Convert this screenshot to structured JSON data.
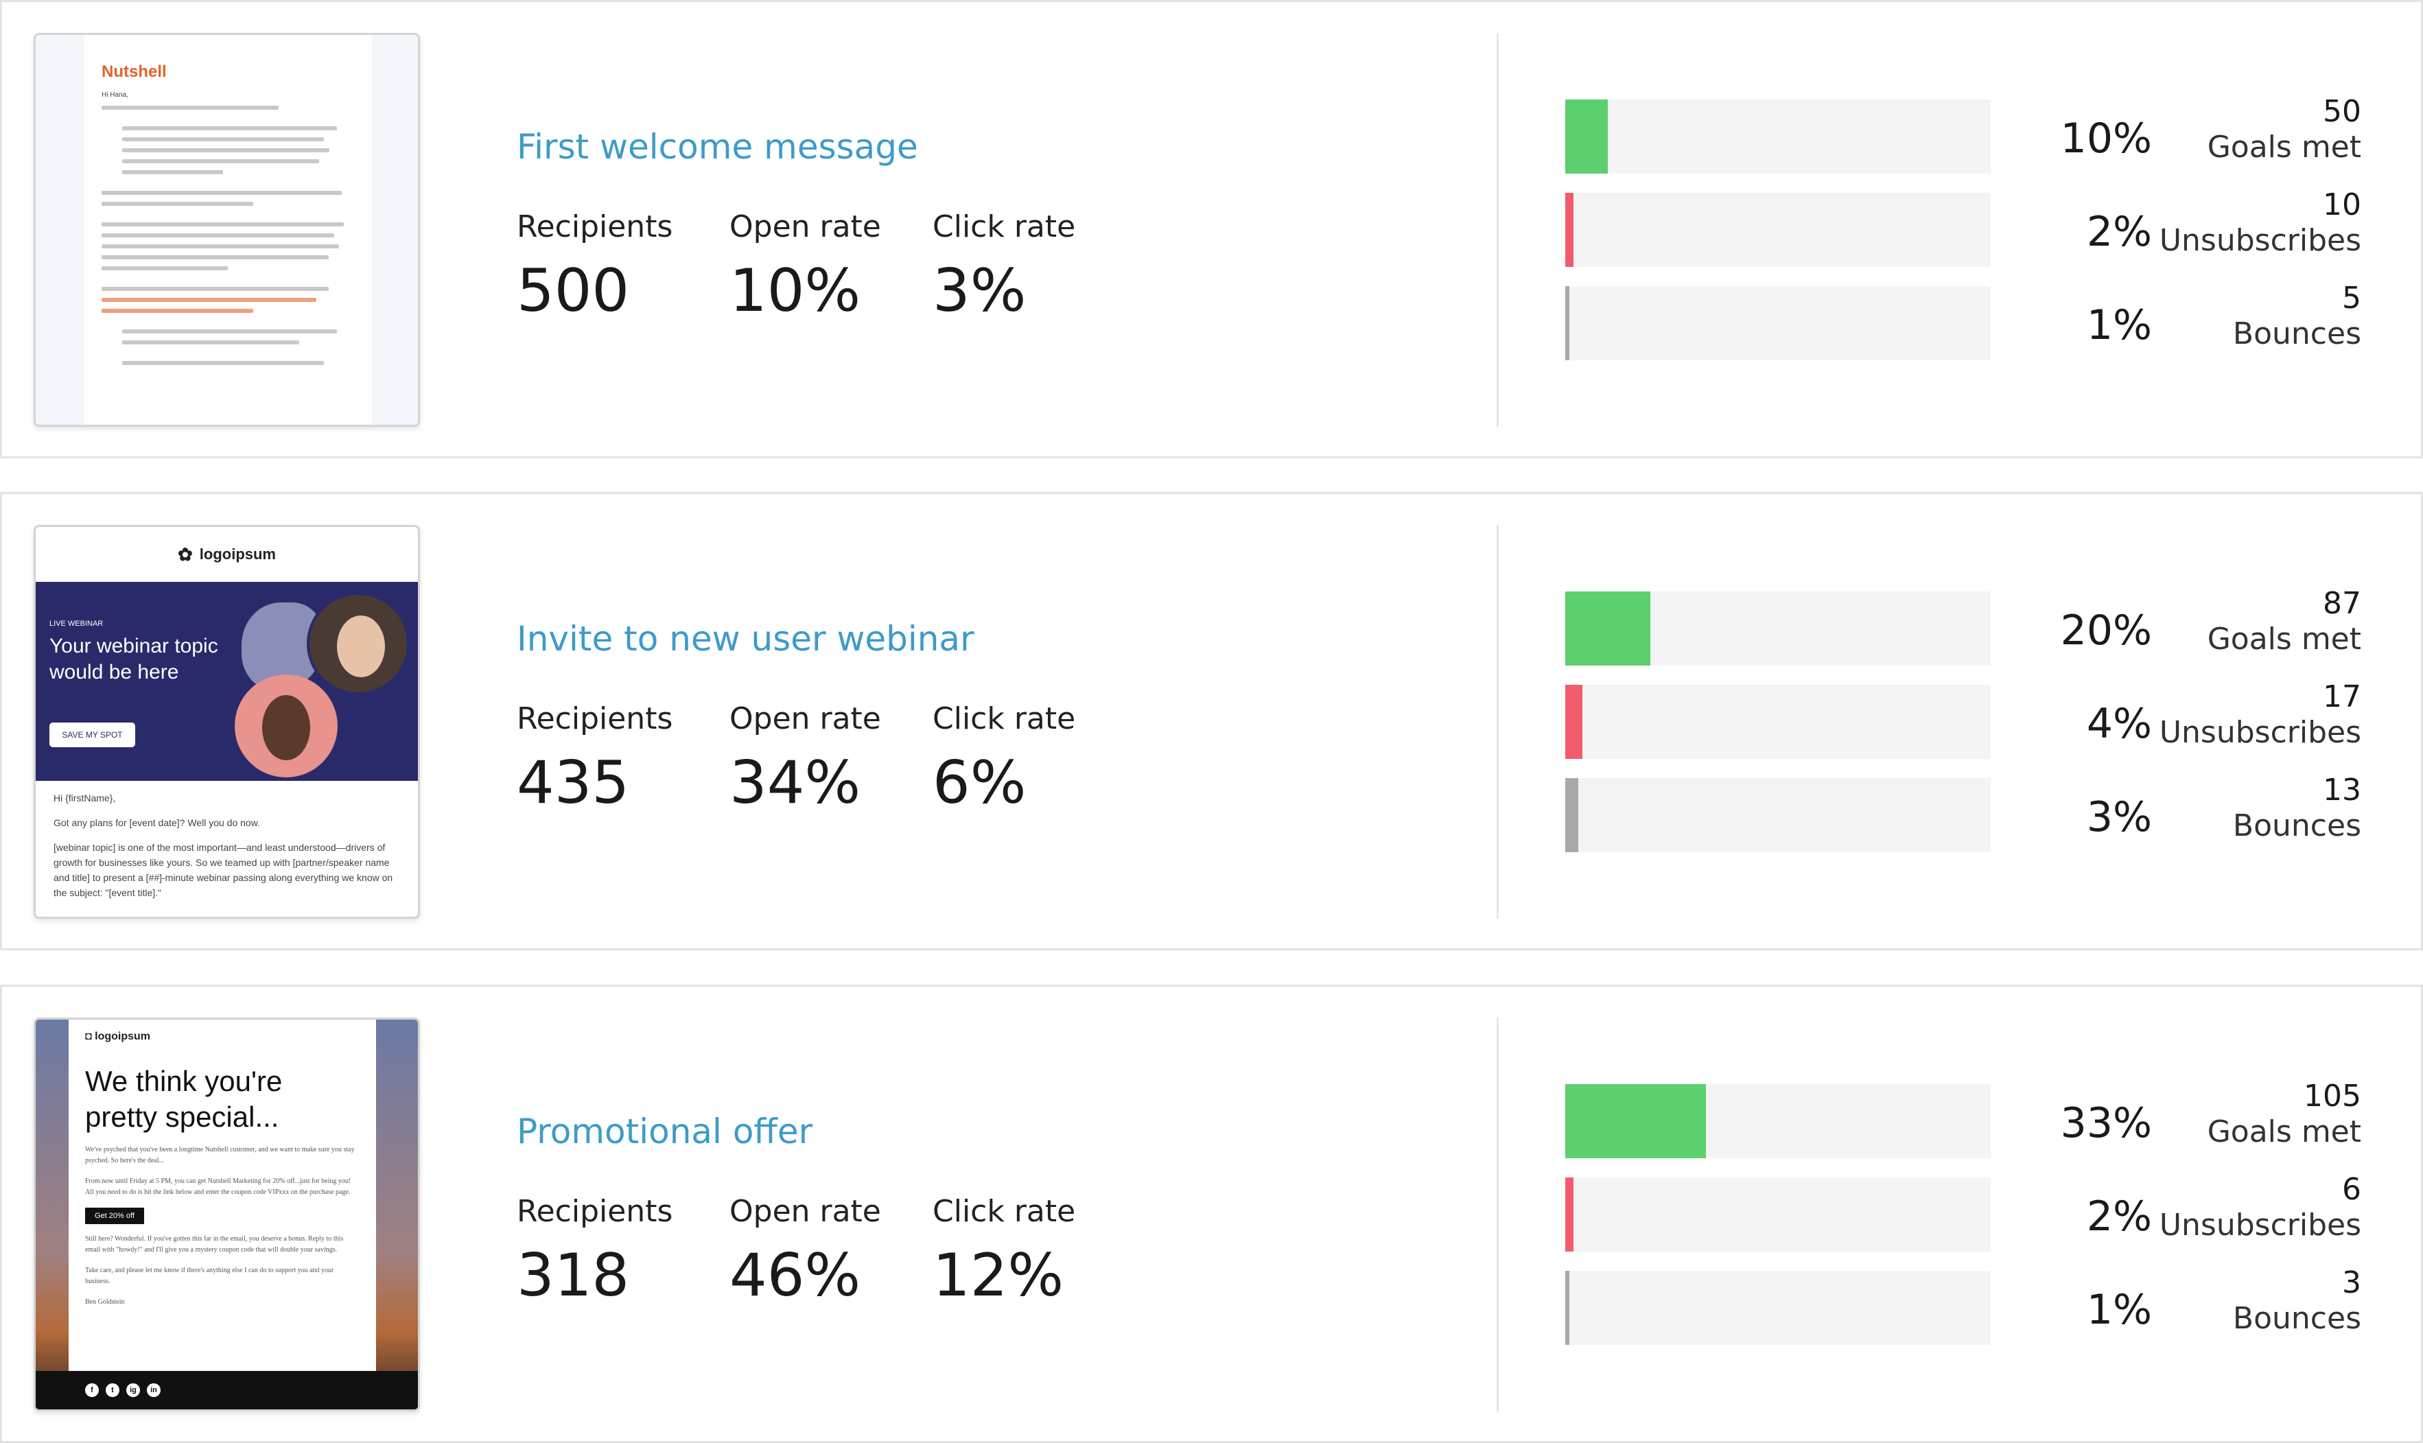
{
  "colors": {
    "title": "#3d9bc9",
    "goals": "#5ccf6f",
    "unsubscribes": "#f25c6b",
    "bounces": "#a9a9a9",
    "track": "#f4f4f4"
  },
  "stat_labels": {
    "recipients": "Recipients",
    "open_rate": "Open rate",
    "click_rate": "Click rate"
  },
  "metric_labels": {
    "goals": "Goals met",
    "unsubscribes": "Unsubscribes",
    "bounces": "Bounces"
  },
  "campaigns": [
    {
      "title": "First welcome message",
      "recipients": "500",
      "open_rate": "10%",
      "click_rate": "3%",
      "metrics": [
        {
          "pct": "10%",
          "fraction": 0.1,
          "count": "50"
        },
        {
          "pct": "2%",
          "fraction": 0.02,
          "count": "10"
        },
        {
          "pct": "1%",
          "fraction": 0.01,
          "count": "5"
        }
      ],
      "preview": {
        "brand": "Nutshell",
        "greeting": "Hi Hana,"
      }
    },
    {
      "title": "Invite to new user webinar",
      "recipients": "435",
      "open_rate": "34%",
      "click_rate": "6%",
      "metrics": [
        {
          "pct": "20%",
          "fraction": 0.2,
          "count": "87"
        },
        {
          "pct": "4%",
          "fraction": 0.04,
          "count": "17"
        },
        {
          "pct": "3%",
          "fraction": 0.03,
          "count": "13"
        }
      ],
      "preview": {
        "logo": "logoipsum",
        "tag": "LIVE WEBINAR",
        "headline": "Your webinar topic would be here",
        "button": "SAVE MY SPOT",
        "line1": "Hi {firstName},",
        "line2": "Got any plans for [event date]? Well you do now.",
        "line3": "[webinar topic] is one of the most important—and least understood—drivers of growth for businesses like yours. So we teamed up with [partner/speaker name and title] to present a [##]-minute webinar passing along everything we know on the subject: \"[event title].\""
      }
    },
    {
      "title": "Promotional offer",
      "recipients": "318",
      "open_rate": "46%",
      "click_rate": "12%",
      "metrics": [
        {
          "pct": "33%",
          "fraction": 0.33,
          "count": "105"
        },
        {
          "pct": "2%",
          "fraction": 0.02,
          "count": "6"
        },
        {
          "pct": "1%",
          "fraction": 0.01,
          "count": "3"
        }
      ],
      "preview": {
        "logo": "logoipsum",
        "headline": "We think you're pretty special...",
        "text1": "We've psyched that you've been a longtime Nutshell customer, and we want to make sure you stay psyched. So here's the deal...",
        "text2": "From now until Friday at 5 PM, you can get Nutshell Marketing for 20% off...just for being you! All you need to do is hit the link below and enter the coupon code VIPxxx on the purchase page.",
        "button": "Get 20% off",
        "text3": "Still here? Wonderful. If you've gotten this far in the email, you deserve a bonus. Reply to this email with \"howdy!\" and I'll give you a mystery coupon code that will double your savings.",
        "text4": "Take care, and please let me know if there's anything else I can do to support you and your business.",
        "sign": "Ben Goldstein",
        "social": [
          "f",
          "t",
          "ig",
          "in"
        ]
      }
    }
  ]
}
